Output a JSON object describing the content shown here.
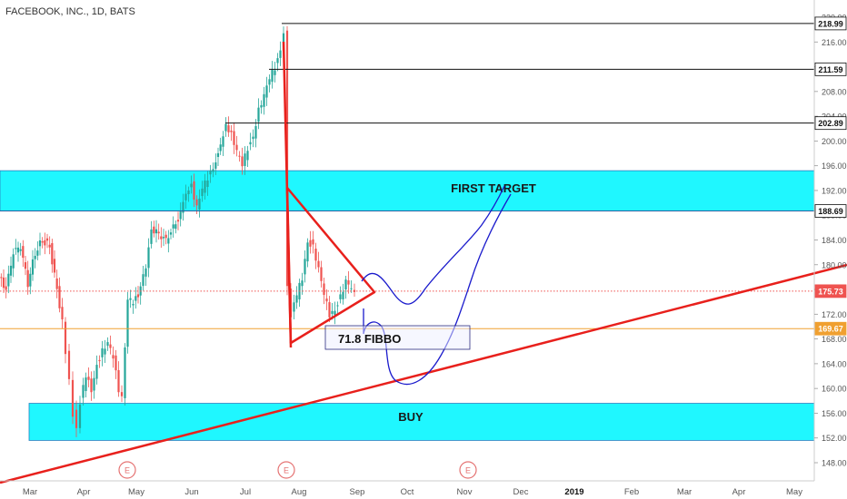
{
  "chart_data": {
    "type": "candlestick",
    "title": "FACEBOOK, INC., 1D, BATS",
    "x_axis": {
      "tick_labels": [
        "Mar",
        "Apr",
        "May",
        "Jun",
        "Jul",
        "Aug",
        "Sep",
        "Oct",
        "Nov",
        "Dec",
        "2019",
        "Feb",
        "Mar",
        "Apr",
        "May"
      ]
    },
    "y_axis": {
      "range": [
        146,
        220
      ],
      "tick_labels": [
        148,
        152,
        156,
        160,
        164,
        168,
        172,
        176,
        180,
        184,
        188,
        192,
        196,
        200,
        204,
        208,
        212,
        216,
        220
      ]
    },
    "price_labels": [
      {
        "value": 218.99,
        "text": "218.99",
        "color": "#000000"
      },
      {
        "value": 211.59,
        "text": "211.59",
        "color": "#000000"
      },
      {
        "value": 202.89,
        "text": "202.89",
        "color": "#000000"
      },
      {
        "value": 188.69,
        "text": "188.69",
        "color": "#000000"
      },
      {
        "value": 175.73,
        "text": "175.73",
        "color": "#ef5350"
      },
      {
        "value": 169.67,
        "text": "169.67",
        "color": "#f0a030"
      }
    ],
    "zones": [
      {
        "label": "FIRST TARGET",
        "low": 188.69,
        "high": 195.2,
        "color": "#1ff7ff"
      },
      {
        "label": "BUY",
        "low": 151.6,
        "high": 157.6,
        "color": "#1ff7ff"
      }
    ],
    "annotation": {
      "text": "71.8 FIBBO"
    },
    "earnings_markers": [
      "E",
      "E",
      "E"
    ],
    "colors": {
      "up": "#26a69a",
      "down": "#ef5350",
      "trendline": "#e8201c",
      "projection": "#1a1acc",
      "zone": "#1ff7ff"
    }
  }
}
